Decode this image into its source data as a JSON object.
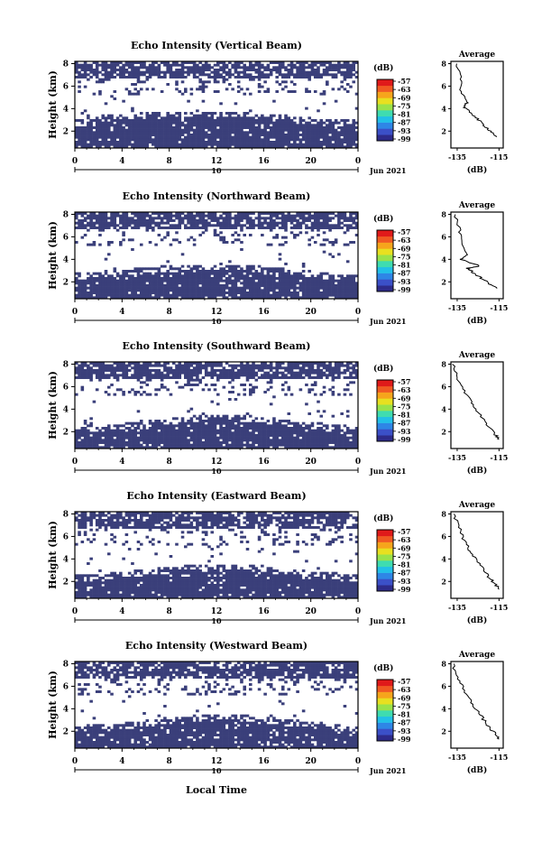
{
  "figure": {
    "bottom_xlabel": "Local Time",
    "x_ticks": [
      "0",
      "4",
      "8",
      "12",
      "16",
      "20",
      "0"
    ],
    "date_day": "10",
    "date_label": "Jun 2021",
    "ylabel": "Height (km)",
    "y_ticks": [
      "2",
      "4",
      "6",
      "8"
    ],
    "colorbar_unit": "(dB)",
    "colorbar_ticks": [
      "-57",
      "-63",
      "-69",
      "-75",
      "-81",
      "-87",
      "-93",
      "-99"
    ],
    "avg_title": "Average",
    "avg_xticks": [
      "-135",
      "-115"
    ],
    "avg_xlabel": "(dB)"
  },
  "chart_data": [
    {
      "type": "heatmap",
      "title": "Echo Intensity (Vertical Beam)",
      "xlabel": "",
      "ylabel": "Height (km)",
      "x_range_hours": [
        0,
        24
      ],
      "y_range_km": [
        0.5,
        8.2
      ],
      "color_range_dB": [
        -99,
        -57
      ],
      "low_echo_top_km": [
        3.0,
        3.2,
        3.4,
        3.5,
        3.6,
        3.7,
        3.7,
        3.7,
        3.7,
        3.8,
        3.8,
        3.8,
        3.8,
        3.7,
        3.7,
        3.6,
        3.5,
        3.4,
        3.3,
        3.2,
        3.1,
        3.0,
        3.0,
        3.0,
        2.9
      ],
      "dominant_dB": -98,
      "average_profile": {
        "title": "Average",
        "x_dB": [
          -136,
          -133,
          -133,
          -130,
          -132,
          -128,
          -125,
          -122,
          -119,
          -116
        ],
        "height_km": [
          8,
          6.6,
          5.5,
          4.6,
          4.1,
          3.6,
          3.0,
          2.5,
          2.0,
          1.5
        ]
      }
    },
    {
      "type": "heatmap",
      "title": "Echo Intensity (Northward Beam)",
      "xlabel": "",
      "ylabel": "Height (km)",
      "x_range_hours": [
        0,
        24
      ],
      "y_range_km": [
        0.5,
        8.2
      ],
      "color_range_dB": [
        -99,
        -57
      ],
      "low_echo_top_km": [
        2.8,
        2.9,
        2.9,
        3.0,
        3.1,
        3.2,
        3.3,
        3.4,
        3.4,
        3.5,
        3.5,
        3.6,
        3.6,
        3.6,
        3.5,
        3.4,
        3.3,
        3.2,
        3.1,
        3.0,
        2.9,
        2.8,
        2.7,
        2.6,
        2.6
      ],
      "dominant_dB": -98,
      "average_profile": {
        "title": "Average",
        "x_dB": [
          -136,
          -134,
          -133,
          -130,
          -133,
          -124,
          -130,
          -128,
          -124,
          -120,
          -116
        ],
        "height_km": [
          8,
          6.6,
          5.5,
          4.4,
          4.0,
          3.4,
          3.2,
          2.9,
          2.4,
          1.9,
          1.4
        ]
      }
    },
    {
      "type": "heatmap",
      "title": "Echo Intensity (Southward Beam)",
      "xlabel": "",
      "ylabel": "Height (km)",
      "x_range_hours": [
        0,
        24
      ],
      "y_range_km": [
        0.5,
        8.2
      ],
      "color_range_dB": [
        -99,
        -57
      ],
      "low_echo_top_km": [
        2.5,
        2.6,
        2.6,
        2.7,
        2.8,
        2.9,
        3.0,
        3.1,
        3.2,
        3.3,
        3.4,
        3.5,
        3.5,
        3.5,
        3.4,
        3.3,
        3.2,
        3.1,
        3.0,
        2.9,
        2.8,
        2.7,
        2.6,
        2.5,
        2.5
      ],
      "dominant_dB": -98,
      "average_profile": {
        "title": "Average",
        "x_dB": [
          -137,
          -135,
          -132,
          -129,
          -126,
          -123,
          -120,
          -117,
          -115
        ],
        "height_km": [
          8,
          6.8,
          5.8,
          4.8,
          4.0,
          3.2,
          2.5,
          1.8,
          1.3
        ]
      }
    },
    {
      "type": "heatmap",
      "title": "Echo Intensity (Eastward Beam)",
      "xlabel": "",
      "ylabel": "Height (km)",
      "x_range_hours": [
        0,
        24
      ],
      "y_range_km": [
        0.5,
        8.2
      ],
      "color_range_dB": [
        -99,
        -57
      ],
      "low_echo_top_km": [
        2.6,
        2.7,
        2.7,
        2.8,
        2.9,
        3.0,
        3.1,
        3.2,
        3.3,
        3.4,
        3.5,
        3.6,
        3.6,
        3.6,
        3.5,
        3.4,
        3.3,
        3.2,
        3.1,
        3.0,
        2.9,
        2.8,
        2.7,
        2.6,
        2.6
      ],
      "dominant_dB": -98,
      "average_profile": {
        "title": "Average",
        "x_dB": [
          -137,
          -134,
          -132,
          -129,
          -126,
          -123,
          -120,
          -117,
          -115
        ],
        "height_km": [
          8,
          6.8,
          5.8,
          4.8,
          4.0,
          3.2,
          2.4,
          1.8,
          1.3
        ]
      }
    },
    {
      "type": "heatmap",
      "title": "Echo Intensity (Westward Beam)",
      "xlabel": "Local Time",
      "ylabel": "Height (km)",
      "x_range_hours": [
        0,
        24
      ],
      "y_range_km": [
        0.5,
        8.2
      ],
      "color_range_dB": [
        -99,
        -57
      ],
      "low_echo_top_km": [
        2.5,
        2.6,
        2.6,
        2.7,
        2.8,
        2.9,
        3.0,
        3.1,
        3.2,
        3.3,
        3.4,
        3.5,
        3.5,
        3.5,
        3.4,
        3.3,
        3.2,
        3.1,
        3.0,
        2.9,
        2.8,
        2.7,
        2.6,
        2.5,
        2.5
      ],
      "dominant_dB": -98,
      "average_profile": {
        "title": "Average",
        "x_dB": [
          -137,
          -135,
          -132,
          -129,
          -126,
          -123,
          -120,
          -117,
          -115
        ],
        "height_km": [
          8,
          6.8,
          5.8,
          4.8,
          4.0,
          3.2,
          2.4,
          1.8,
          1.3
        ]
      }
    }
  ],
  "colors": {
    "echo_fill": "#3a3f7a",
    "colorbar": [
      "#2e2b8a",
      "#3b50c8",
      "#2e86e6",
      "#22c0e8",
      "#3fdcb0",
      "#9ae24a",
      "#e8e020",
      "#f6a51c",
      "#f05a22",
      "#e01a1a"
    ]
  }
}
